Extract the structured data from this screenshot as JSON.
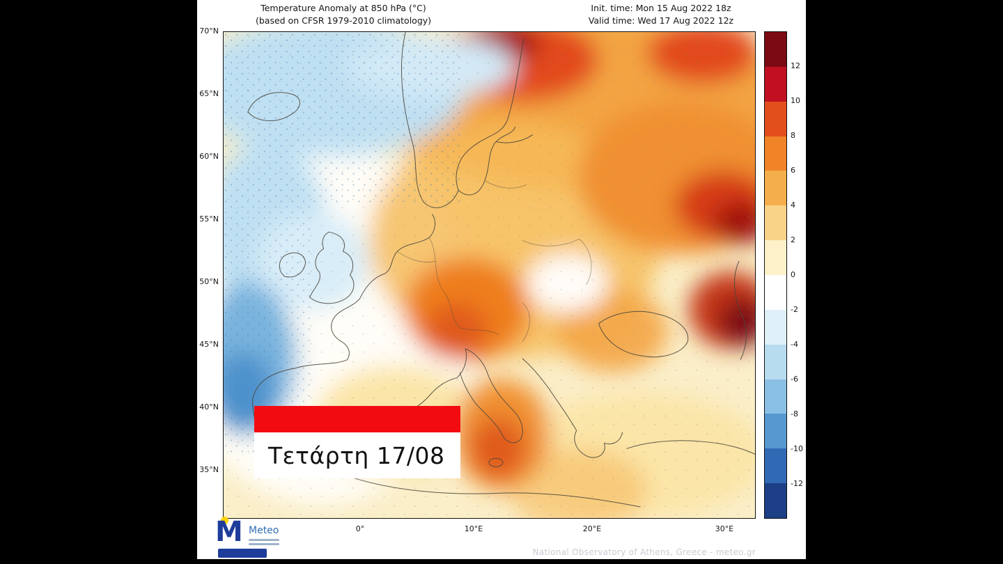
{
  "header": {
    "title_line1": "Temperature Anomaly at 850 hPa (°C)",
    "title_line2": "(based on CFSR 1979-2010 climatology)",
    "init_time": "Init. time: Mon 15 Aug 2022 18z",
    "valid_time": "Valid time: Wed 17 Aug 2022 12z"
  },
  "map": {
    "lat_labels": [
      "70°N",
      "65°N",
      "60°N",
      "55°N",
      "50°N",
      "45°N",
      "40°N",
      "35°N"
    ],
    "lon_labels": [
      "0°",
      "10°E",
      "20°E",
      "30°E"
    ]
  },
  "colorbar": {
    "tick_labels": [
      "12",
      "10",
      "8",
      "6",
      "4",
      "2",
      "0",
      "-2",
      "-4",
      "-6",
      "-8",
      "-10",
      "-12"
    ],
    "cell_colors": [
      "#7C0A14",
      "#C11022",
      "#E34F1C",
      "#F08426",
      "#F5AE4C",
      "#F9D488",
      "#FDF1C9",
      "#FFFFFF",
      "#E0F0F9",
      "#B8DCEF",
      "#8AC0E4",
      "#5898D0",
      "#3069B4",
      "#1C3E86"
    ]
  },
  "banner": {
    "date_label": "Τετάρτη 17/08",
    "bar_color": "#F30B12"
  },
  "footer": {
    "brand": "Meteo",
    "credit": "National Observatory of Athens, Greece - meteo.gr"
  },
  "colors": {
    "page_background": "#000000",
    "map_base": "#FBEFC9"
  }
}
